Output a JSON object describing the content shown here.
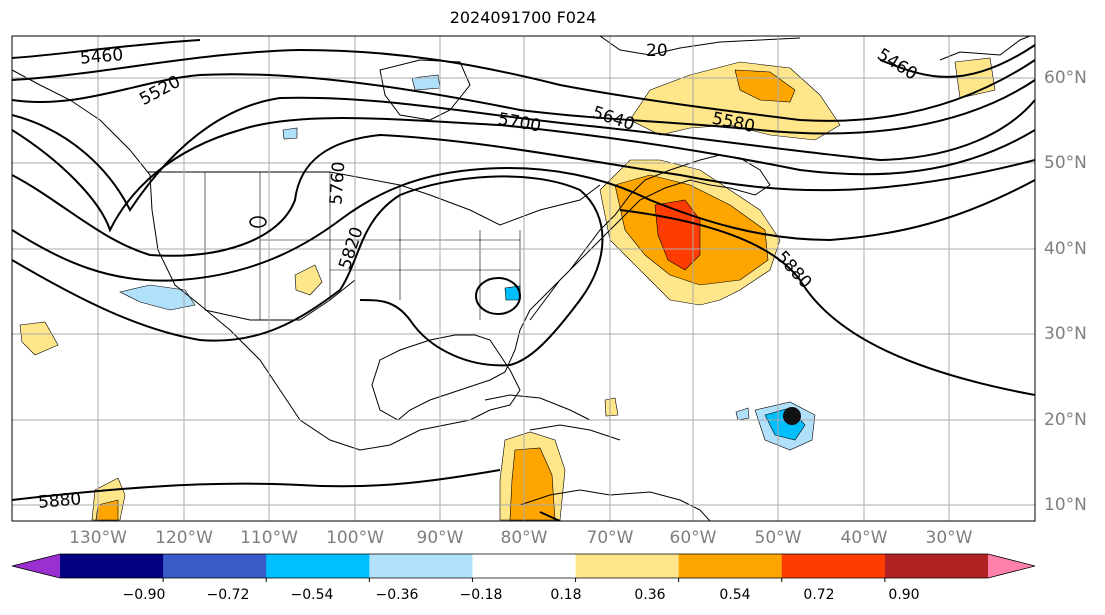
{
  "title": "2024091700 F024",
  "longitude_labels": [
    "130°W",
    "120°W",
    "110°W",
    "100°W",
    "90°W",
    "80°W",
    "70°W",
    "60°W",
    "50°W",
    "40°W",
    "30°W"
  ],
  "latitude_labels": [
    "60°N",
    "50°N",
    "40°N",
    "30°N",
    "20°N",
    "10°N"
  ],
  "contour_labels": [
    "5460",
    "5520",
    "5700",
    "5640",
    "5580",
    "5460",
    "5760",
    "5820",
    "5880",
    "5880",
    "20"
  ],
  "colorbar": {
    "ticks": [
      "−0.90",
      "−0.72",
      "−0.54",
      "−0.36",
      "−0.18",
      "0.18",
      "0.36",
      "0.54",
      "0.72",
      "0.90"
    ],
    "colors": [
      "#9b30d0",
      "#000080",
      "#3a5bc8",
      "#00bfff",
      "#b0e0fa",
      "#ffffff",
      "#ffe68a",
      "#ffa500",
      "#ff3c00",
      "#b22222",
      "#ff80aa"
    ]
  },
  "colors": {
    "land_outline": "#000000",
    "grid": "#aaaaaa",
    "contour": "#000000"
  }
}
